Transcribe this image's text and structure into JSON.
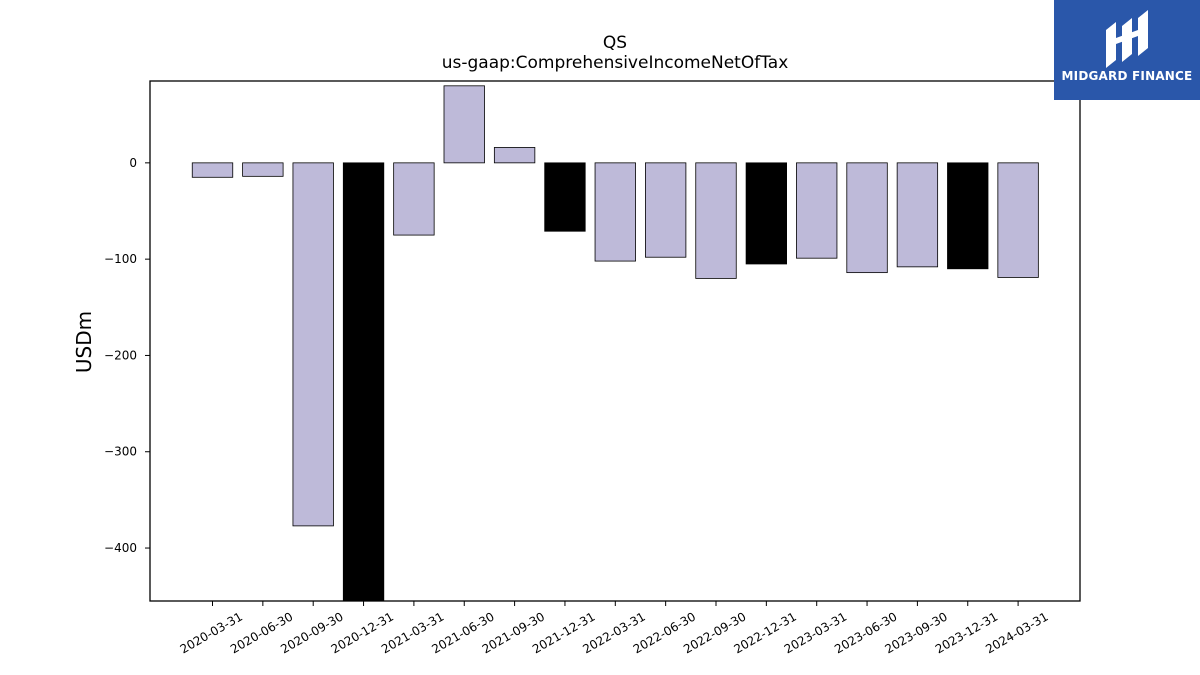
{
  "logo": {
    "text": "MIDGARD FINANCE",
    "background": "#2a57aa"
  },
  "chart_data": {
    "type": "bar",
    "title": "QS",
    "subtitle": "us-gaap:ComprehensiveIncomeNetOfTax",
    "xlabel": "",
    "ylabel": "USDm",
    "ylim": [
      -455,
      85
    ],
    "yticks": [
      0,
      -100,
      -200,
      -300,
      -400
    ],
    "ytick_labels": [
      "0",
      "−100",
      "−200",
      "−300",
      "−400"
    ],
    "categories": [
      "2020-03-31",
      "2020-06-30",
      "2020-09-30",
      "2020-12-31",
      "2021-03-31",
      "2021-06-30",
      "2021-09-30",
      "2021-12-31",
      "2022-03-31",
      "2022-06-30",
      "2022-09-30",
      "2022-12-31",
      "2023-03-31",
      "2023-06-30",
      "2023-09-30",
      "2023-12-31",
      "2024-03-31"
    ],
    "values": [
      -15,
      -14,
      -377,
      -455,
      -75,
      80,
      16,
      -71,
      -102,
      -98,
      -120,
      -105,
      -99,
      -114,
      -108,
      -110,
      -119
    ],
    "colors": [
      "#bebad9",
      "#bebad9",
      "#bebad9",
      "#000000",
      "#bebad9",
      "#bebad9",
      "#bebad9",
      "#000000",
      "#bebad9",
      "#bebad9",
      "#bebad9",
      "#000000",
      "#bebad9",
      "#bebad9",
      "#bebad9",
      "#000000",
      "#bebad9"
    ],
    "grid": false,
    "legend": "none"
  }
}
